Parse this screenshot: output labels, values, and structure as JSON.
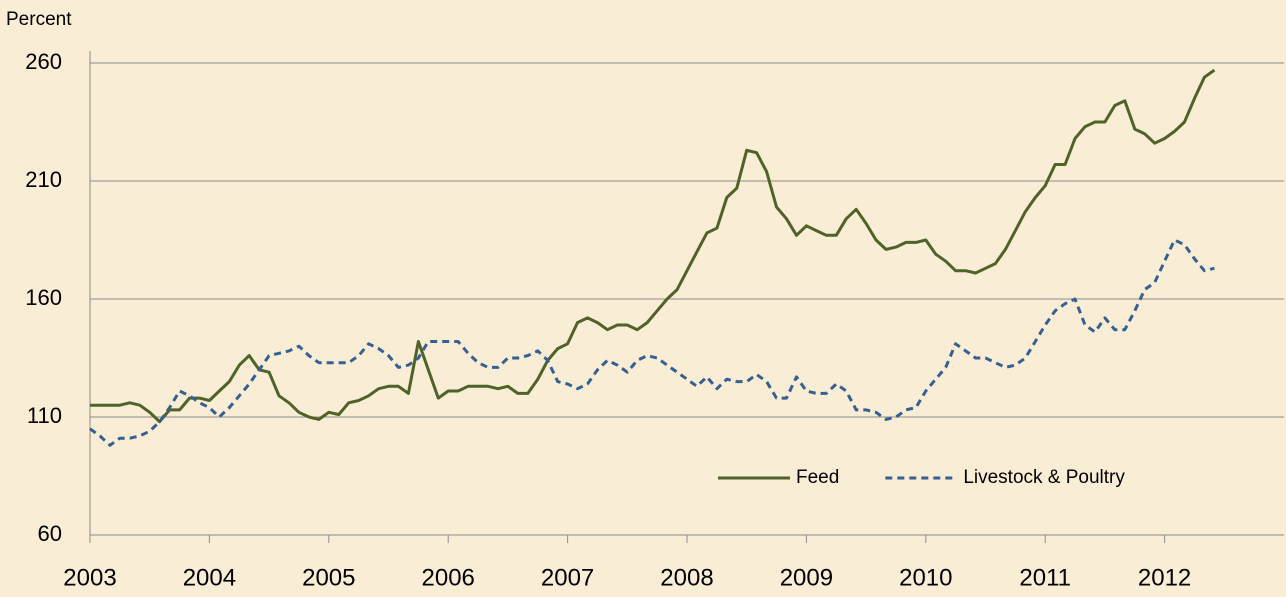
{
  "chart_data": {
    "type": "line",
    "y_label": "Percent",
    "x": [
      2003.0,
      2003.083,
      2003.167,
      2003.25,
      2003.333,
      2003.417,
      2003.5,
      2003.583,
      2003.667,
      2003.75,
      2003.833,
      2003.917,
      2004.0,
      2004.083,
      2004.167,
      2004.25,
      2004.333,
      2004.417,
      2004.5,
      2004.583,
      2004.667,
      2004.75,
      2004.833,
      2004.917,
      2005.0,
      2005.083,
      2005.167,
      2005.25,
      2005.333,
      2005.417,
      2005.5,
      2005.583,
      2005.667,
      2005.75,
      2005.833,
      2005.917,
      2006.0,
      2006.083,
      2006.167,
      2006.25,
      2006.333,
      2006.417,
      2006.5,
      2006.583,
      2006.667,
      2006.75,
      2006.833,
      2006.917,
      2007.0,
      2007.083,
      2007.167,
      2007.25,
      2007.333,
      2007.417,
      2007.5,
      2007.583,
      2007.667,
      2007.75,
      2007.833,
      2007.917,
      2008.0,
      2008.083,
      2008.167,
      2008.25,
      2008.333,
      2008.417,
      2008.5,
      2008.583,
      2008.667,
      2008.75,
      2008.833,
      2008.917,
      2009.0,
      2009.083,
      2009.167,
      2009.25,
      2009.333,
      2009.417,
      2009.5,
      2009.583,
      2009.667,
      2009.75,
      2009.833,
      2009.917,
      2010.0,
      2010.083,
      2010.167,
      2010.25,
      2010.333,
      2010.417,
      2010.5,
      2010.583,
      2010.667,
      2010.75,
      2010.833,
      2010.917,
      2011.0,
      2011.083,
      2011.167,
      2011.25,
      2011.333,
      2011.417,
      2011.5,
      2011.583,
      2011.667,
      2011.75,
      2011.833,
      2011.917,
      2012.0,
      2012.083,
      2012.167,
      2012.25,
      2012.333,
      2012.417
    ],
    "series": [
      {
        "name": "Feed",
        "color": "#4f6228",
        "dash": false,
        "values": [
          115,
          115,
          115,
          115,
          116,
          115,
          112,
          108,
          113,
          113,
          118,
          118,
          117,
          121,
          125,
          132,
          136,
          130,
          129,
          119,
          116,
          112,
          110,
          109,
          112,
          111,
          116,
          117,
          119,
          122,
          123,
          123,
          120,
          142,
          130,
          118,
          121,
          121,
          123,
          123,
          123,
          122,
          123,
          120,
          120,
          126,
          134,
          139,
          141,
          150,
          152,
          150,
          147,
          149,
          149,
          147,
          150,
          155,
          160,
          164,
          172,
          180,
          188,
          190,
          203,
          207,
          223,
          222,
          214,
          199,
          194,
          187,
          191,
          189,
          187,
          187,
          194,
          198,
          192,
          185,
          181,
          182,
          184,
          184,
          185,
          179,
          176,
          172,
          172,
          171,
          173,
          175,
          181,
          189,
          197,
          203,
          208,
          217,
          217,
          228,
          233,
          235,
          235,
          242,
          244,
          232,
          230,
          226,
          228,
          231,
          235,
          245,
          254,
          257
        ]
      },
      {
        "name": "Livestock & Poultry",
        "color": "#376092",
        "dash": true,
        "values": [
          105,
          102,
          98,
          101,
          101,
          102,
          104,
          108,
          114,
          121,
          119,
          116,
          114,
          110,
          114,
          119,
          124,
          130,
          136,
          137,
          138,
          140,
          136,
          133,
          133,
          133,
          133,
          136,
          141,
          139,
          136,
          131,
          132,
          135,
          142,
          142,
          142,
          142,
          137,
          133,
          131,
          131,
          135,
          135,
          136,
          138,
          134,
          125,
          124,
          122,
          124,
          130,
          134,
          132,
          129,
          134,
          136,
          135,
          132,
          129,
          126,
          123,
          127,
          122,
          126,
          125,
          125,
          128,
          125,
          118,
          118,
          127,
          121,
          120,
          120,
          124,
          121,
          113,
          113,
          112,
          109,
          110,
          113,
          114,
          121,
          126,
          131,
          141,
          138,
          135,
          135,
          133,
          131,
          132,
          135,
          142,
          149,
          155,
          158,
          160,
          149,
          146,
          152,
          147,
          147,
          155,
          164,
          167,
          176,
          185,
          183,
          177,
          172,
          173
        ]
      }
    ],
    "xlim": [
      2003,
      2013
    ],
    "xticks": [
      2003,
      2004,
      2005,
      2006,
      2007,
      2008,
      2009,
      2010,
      2011,
      2012
    ],
    "ylim": [
      60,
      260
    ],
    "yticks": [
      60,
      110,
      160,
      210,
      260
    ],
    "grid": true,
    "legend": "lower right"
  }
}
